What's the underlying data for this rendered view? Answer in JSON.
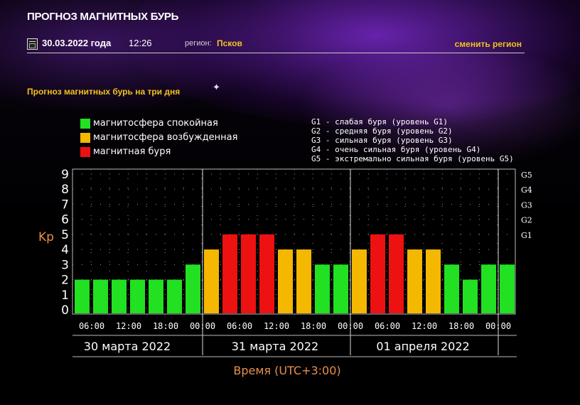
{
  "header": {
    "title": "ПРОГНОЗ МАГНИТНЫХ БУРЬ",
    "date": "30.03.2022 года",
    "time": "12:26",
    "region_label": "регион:",
    "region_value": "Псков",
    "change_region": "сменить регион",
    "subtitle": "Прогноз магнитных бурь на три дня"
  },
  "legend": [
    {
      "label": "магнитосфера спокойная",
      "color": "#22e022"
    },
    {
      "label": "магнитосфера возбужденная",
      "color": "#f5b800"
    },
    {
      "label": "магнитная буря",
      "color": "#ee1111"
    }
  ],
  "g_legend": [
    "G1 - слабая буря (уровень G1)",
    "G2 - средняя буря (уровень G2)",
    "G3 - сильная буря (уровень G3)",
    "G4 - очень сильная буря (уровень G4)",
    "G5 - экстремально сильная буря (уровень G5)"
  ],
  "chart_data": {
    "type": "bar",
    "ylabel": "Kp",
    "xlabel": "Время (UTC+3:00)",
    "ylim": [
      0,
      9
    ],
    "y_ticks": [
      "0",
      "1",
      "2",
      "3",
      "4",
      "5",
      "6",
      "7",
      "8",
      "9"
    ],
    "right_ticks": [
      {
        "label": "G1",
        "value": 5
      },
      {
        "label": "G2",
        "value": 6
      },
      {
        "label": "G3",
        "value": 7
      },
      {
        "label": "G4",
        "value": 8
      },
      {
        "label": "G5",
        "value": 9
      }
    ],
    "days": [
      "30 марта 2022",
      "31 марта 2022",
      "01 апреля 2022"
    ],
    "x_tick_labels": [
      "06:00",
      "12:00",
      "18:00",
      "00:00",
      "06:00",
      "12:00",
      "18:00",
      "00:00",
      "06:00",
      "12:00",
      "18:00",
      "00:00"
    ],
    "values": [
      2,
      2,
      2,
      2,
      2,
      2,
      3,
      4,
      5,
      5,
      5,
      4,
      4,
      3,
      3,
      4,
      5,
      5,
      4,
      4,
      3,
      2,
      3,
      3
    ],
    "color_levels": {
      "quiet": "#22e022",
      "active": "#f5b800",
      "storm": "#ee1111"
    },
    "grid": true
  }
}
